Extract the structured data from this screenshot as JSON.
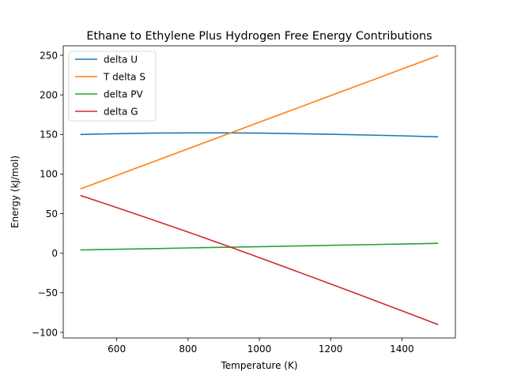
{
  "chart_data": {
    "type": "line",
    "title": "Ethane to Ethylene Plus Hydrogen Free Energy Contributions",
    "xlabel": "Temperature (K)",
    "ylabel": "Energy (kJ/mol)",
    "xlim": [
      450,
      1550
    ],
    "ylim": [
      -107,
      262
    ],
    "xticks": [
      600,
      800,
      1000,
      1200,
      1400
    ],
    "yticks": [
      -100,
      -50,
      0,
      50,
      100,
      150,
      200,
      250
    ],
    "grid": false,
    "legend_position": "top-left",
    "x": [
      500,
      600,
      700,
      800,
      900,
      1000,
      1100,
      1200,
      1300,
      1400,
      1500
    ],
    "series": [
      {
        "name": "delta U",
        "color": "#1f77b4",
        "values": [
          150.0,
          151.0,
          151.7,
          152.0,
          152.0,
          151.7,
          151.0,
          150.2,
          149.3,
          148.3,
          147.0
        ]
      },
      {
        "name": "T delta S",
        "color": "#ff7f0e",
        "values": [
          81.5,
          98.3,
          115.1,
          131.9,
          148.7,
          165.5,
          182.2,
          199.0,
          215.8,
          232.6,
          249.4
        ]
      },
      {
        "name": "delta PV",
        "color": "#2ca02c",
        "values": [
          4.2,
          5.0,
          5.8,
          6.7,
          7.5,
          8.3,
          9.1,
          10.0,
          10.8,
          11.6,
          12.5
        ]
      },
      {
        "name": "delta G",
        "color": "#d62728",
        "values": [
          72.7,
          57.7,
          42.4,
          26.8,
          10.8,
          -5.5,
          -22.1,
          -38.8,
          -55.7,
          -72.7,
          -89.9
        ]
      }
    ]
  }
}
